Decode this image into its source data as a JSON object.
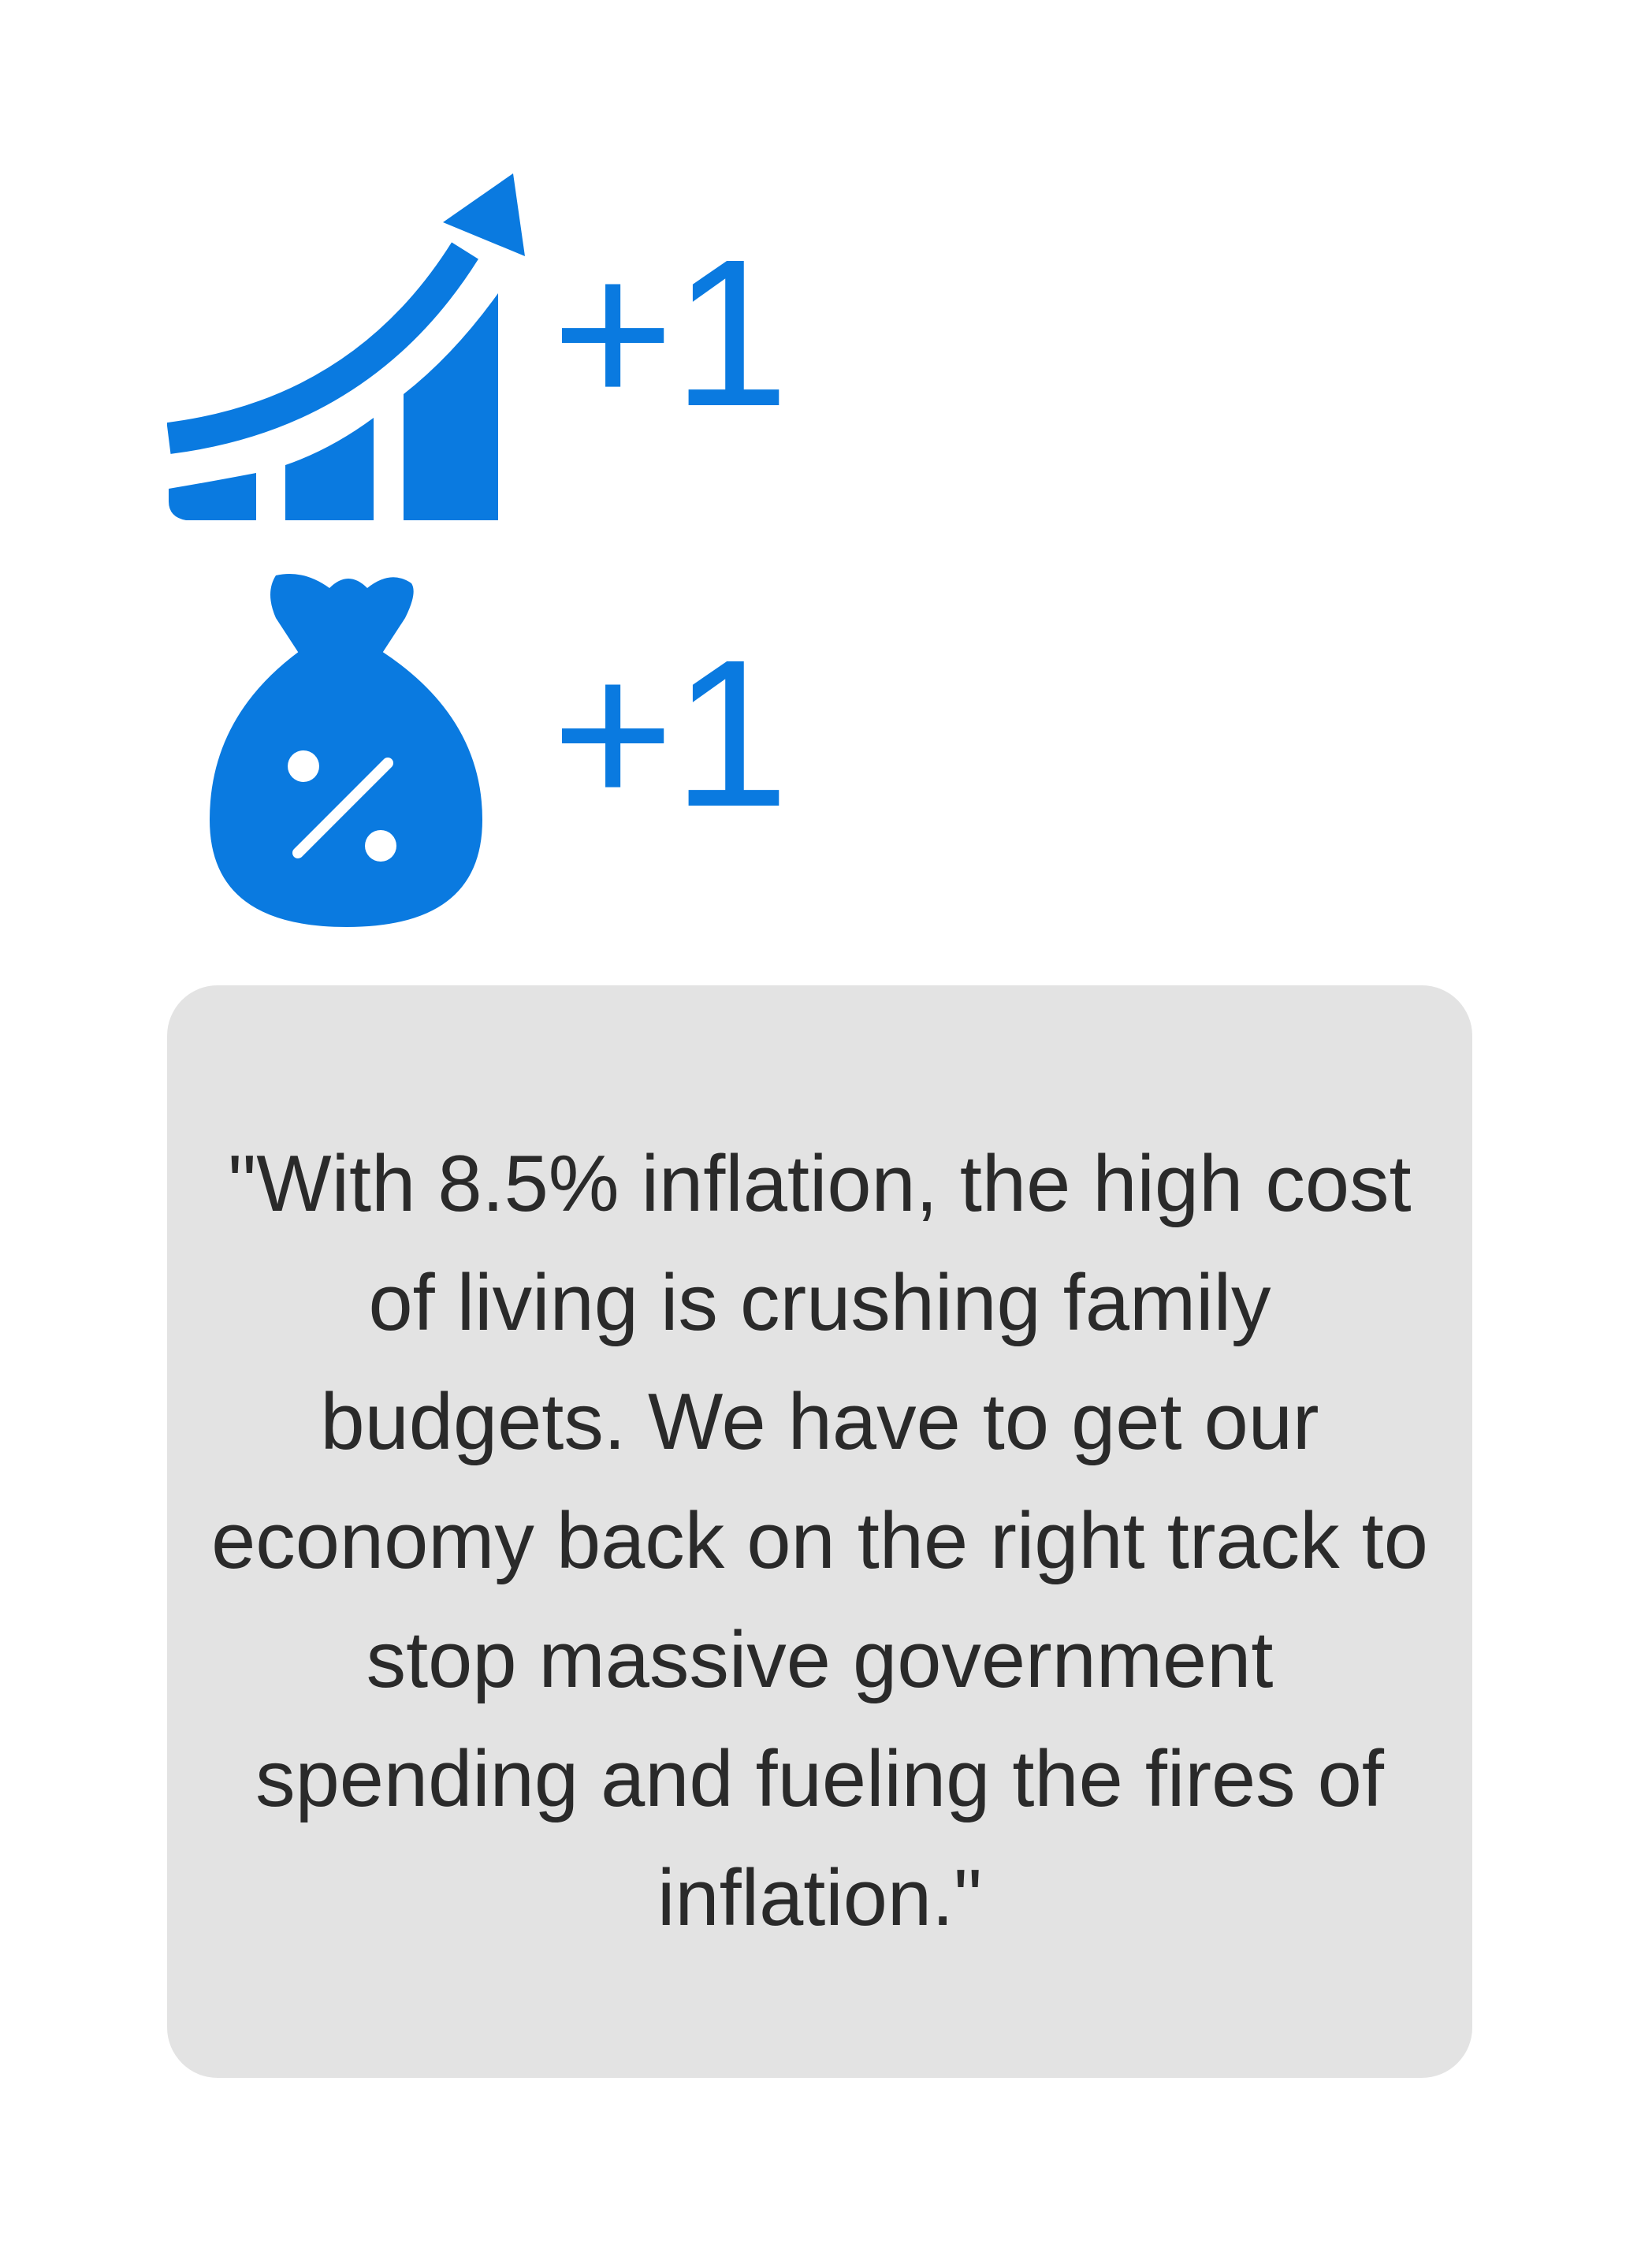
{
  "colors": {
    "accent": "#0a7ae0",
    "card_background": "#e3e3e3",
    "text": "#2a2a2a",
    "background": "#ffffff"
  },
  "items": [
    {
      "icon": "growth-chart-arrow-icon",
      "value": "+1"
    },
    {
      "icon": "money-bag-percent-icon",
      "value": "+1"
    }
  ],
  "quote": {
    "text": "\"With 8.5% inflation, the high cost of living is crushing family budgets. We have to get our economy back on the right track to stop massive government spending and fueling the fires of inflation.\""
  }
}
